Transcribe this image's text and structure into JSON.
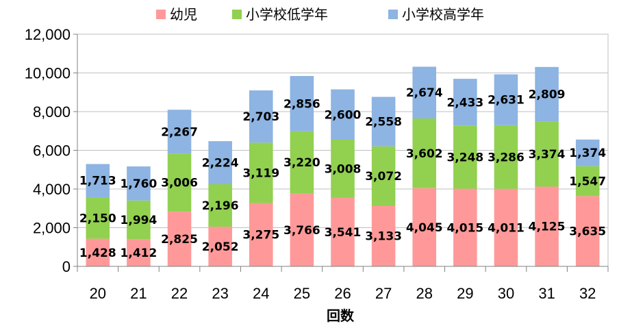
{
  "chart_data": {
    "type": "bar",
    "stacked": true,
    "xlabel": "回数",
    "ylabel": "",
    "ylim": [
      0,
      12000
    ],
    "yticks": [
      0,
      2000,
      4000,
      6000,
      8000,
      10000,
      12000
    ],
    "ytick_labels": [
      "0",
      "2,000",
      "4,000",
      "6,000",
      "8,000",
      "10,000",
      "12,000"
    ],
    "grid": true,
    "legend_position": "top",
    "categories": [
      "20",
      "21",
      "22",
      "23",
      "24",
      "25",
      "26",
      "27",
      "28",
      "29",
      "30",
      "31",
      "32"
    ],
    "series": [
      {
        "name": "幼児",
        "color": "#FF9999",
        "values": [
          1428,
          1412,
          2825,
          2052,
          3275,
          3766,
          3541,
          3133,
          4045,
          4015,
          4011,
          4125,
          3635
        ],
        "labels": [
          "1,428",
          "1,412",
          "2,825",
          "2,052",
          "3,275",
          "3,766",
          "3,541",
          "3,133",
          "4,045",
          "4,015",
          "4,011",
          "4,125",
          "3,635"
        ]
      },
      {
        "name": "小学校低学年",
        "color": "#92D050",
        "values": [
          2150,
          1994,
          3006,
          2196,
          3119,
          3220,
          3008,
          3072,
          3602,
          3248,
          3286,
          3374,
          1547
        ],
        "labels": [
          "2,150",
          "1,994",
          "3,006",
          "2,196",
          "3,119",
          "3,220",
          "3,008",
          "3,072",
          "3,602",
          "3,248",
          "3,286",
          "3,374",
          "1,547"
        ]
      },
      {
        "name": "小学校高学年",
        "color": "#8DB4E2",
        "values": [
          1713,
          1760,
          2267,
          2224,
          2703,
          2856,
          2600,
          2558,
          2674,
          2433,
          2631,
          2809,
          1374
        ],
        "labels": [
          "1,713",
          "1,760",
          "2,267",
          "2,224",
          "2,703",
          "2,856",
          "2,600",
          "2,558",
          "2,674",
          "2,433",
          "2,631",
          "2,809",
          "1,374"
        ]
      }
    ]
  }
}
